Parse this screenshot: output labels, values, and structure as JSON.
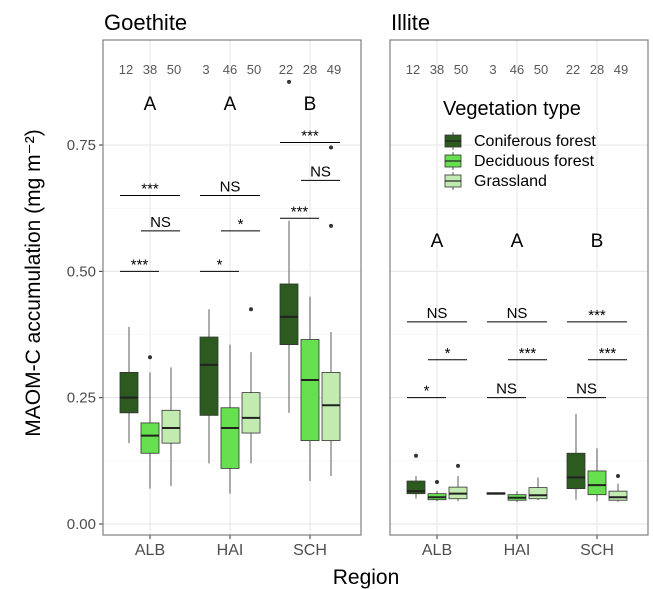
{
  "chart_data": {
    "type": "box",
    "ylabel": "MAOM-C accumulation (mg m⁻²)",
    "xlabel": "Region",
    "ylim": [
      0,
      0.8
    ],
    "yticks": [
      0.0,
      0.25,
      0.5,
      0.75
    ],
    "ytick_labels": [
      "0.00",
      "0.25",
      "0.50",
      "0.75"
    ],
    "categories": [
      "ALB",
      "HAI",
      "SCH"
    ],
    "grid": true,
    "legend": {
      "title": "Vegetation type",
      "placement": "inside-right-panel-top",
      "entries": [
        {
          "name": "Coniferous forest",
          "color": "#2d5a1e"
        },
        {
          "name": "Deciduous forest",
          "color": "#66e04f"
        },
        {
          "name": "Grassland",
          "color": "#c2ebb2"
        }
      ]
    },
    "panels": [
      {
        "title": "Goethite",
        "groups": [
          {
            "category": "ALB",
            "counts": [
              "12",
              "38",
              "50"
            ],
            "letter": "A",
            "boxes": [
              {
                "series": "Coniferous forest",
                "min": 0.16,
                "q1": 0.22,
                "median": 0.25,
                "q3": 0.3,
                "max": 0.39,
                "outliers": []
              },
              {
                "series": "Deciduous forest",
                "min": 0.07,
                "q1": 0.14,
                "median": 0.175,
                "q3": 0.2,
                "max": 0.3,
                "outliers": [
                  0.33
                ]
              },
              {
                "series": "Grassland",
                "min": 0.075,
                "q1": 0.16,
                "median": 0.19,
                "q3": 0.225,
                "max": 0.31,
                "outliers": []
              }
            ],
            "sig": [
              {
                "pair": [
                  0,
                  1
                ],
                "label": "***",
                "value": 0.5
              },
              {
                "pair": [
                  1,
                  2
                ],
                "label": "NS",
                "value": 0.58
              },
              {
                "pair": [
                  0,
                  2
                ],
                "label": "***",
                "value": 0.65
              }
            ]
          },
          {
            "category": "HAI",
            "counts": [
              "3",
              "46",
              "50"
            ],
            "letter": "A",
            "boxes": [
              {
                "series": "Coniferous forest",
                "min": 0.12,
                "q1": 0.215,
                "median": 0.315,
                "q3": 0.37,
                "max": 0.425,
                "outliers": []
              },
              {
                "series": "Deciduous forest",
                "min": 0.06,
                "q1": 0.11,
                "median": 0.19,
                "q3": 0.23,
                "max": 0.355,
                "outliers": []
              },
              {
                "series": "Grassland",
                "min": 0.12,
                "q1": 0.18,
                "median": 0.21,
                "q3": 0.26,
                "max": 0.34,
                "outliers": [
                  0.425
                ]
              }
            ],
            "sig": [
              {
                "pair": [
                  0,
                  1
                ],
                "label": "*",
                "value": 0.5
              },
              {
                "pair": [
                  1,
                  2
                ],
                "label": "*",
                "value": 0.58
              },
              {
                "pair": [
                  0,
                  2
                ],
                "label": "NS",
                "value": 0.65
              }
            ]
          },
          {
            "category": "SCH",
            "counts": [
              "22",
              "28",
              "49"
            ],
            "letter": "B",
            "boxes": [
              {
                "series": "Coniferous forest",
                "min": 0.22,
                "q1": 0.355,
                "median": 0.41,
                "q3": 0.475,
                "max": 0.6,
                "outliers": [
                  0.875
                ]
              },
              {
                "series": "Deciduous forest",
                "min": 0.085,
                "q1": 0.165,
                "median": 0.285,
                "q3": 0.365,
                "max": 0.45,
                "outliers": []
              },
              {
                "series": "Grassland",
                "min": 0.095,
                "q1": 0.165,
                "median": 0.235,
                "q3": 0.3,
                "max": 0.38,
                "outliers": [
                  0.59,
                  0.745
                ]
              }
            ],
            "sig": [
              {
                "pair": [
                  0,
                  1
                ],
                "label": "***",
                "value": 0.605
              },
              {
                "pair": [
                  1,
                  2
                ],
                "label": "NS",
                "value": 0.68
              },
              {
                "pair": [
                  0,
                  2
                ],
                "label": "***",
                "value": 0.755
              }
            ]
          }
        ]
      },
      {
        "title": "Illite",
        "groups": [
          {
            "category": "ALB",
            "counts": [
              "12",
              "38",
              "50"
            ],
            "letter": "A",
            "boxes": [
              {
                "series": "Coniferous forest",
                "min": 0.05,
                "q1": 0.06,
                "median": 0.065,
                "q3": 0.085,
                "max": 0.095,
                "outliers": [
                  0.135
                ]
              },
              {
                "series": "Deciduous forest",
                "min": 0.045,
                "q1": 0.048,
                "median": 0.053,
                "q3": 0.06,
                "max": 0.065,
                "outliers": [
                  0.083
                ]
              },
              {
                "series": "Grassland",
                "min": 0.045,
                "q1": 0.05,
                "median": 0.06,
                "q3": 0.073,
                "max": 0.095,
                "outliers": [
                  0.115
                ]
              }
            ],
            "sig": [
              {
                "pair": [
                  0,
                  1
                ],
                "label": "*",
                "value": 0.25
              },
              {
                "pair": [
                  1,
                  2
                ],
                "label": "*",
                "value": 0.325
              },
              {
                "pair": [
                  0,
                  2
                ],
                "label": "NS",
                "value": 0.4
              }
            ]
          },
          {
            "category": "HAI",
            "counts": [
              "3",
              "46",
              "50"
            ],
            "letter": "A",
            "boxes": [
              {
                "series": "Coniferous forest",
                "min": 0.058,
                "q1": 0.059,
                "median": 0.06,
                "q3": 0.062,
                "max": 0.063,
                "outliers": []
              },
              {
                "series": "Deciduous forest",
                "min": 0.043,
                "q1": 0.047,
                "median": 0.052,
                "q3": 0.058,
                "max": 0.065,
                "outliers": []
              },
              {
                "series": "Grassland",
                "min": 0.047,
                "q1": 0.05,
                "median": 0.057,
                "q3": 0.072,
                "max": 0.092,
                "outliers": []
              }
            ],
            "sig": [
              {
                "pair": [
                  0,
                  1
                ],
                "label": "NS",
                "value": 0.25
              },
              {
                "pair": [
                  1,
                  2
                ],
                "label": "***",
                "value": 0.325
              },
              {
                "pair": [
                  0,
                  2
                ],
                "label": "NS",
                "value": 0.4
              }
            ]
          },
          {
            "category": "SCH",
            "counts": [
              "22",
              "28",
              "49"
            ],
            "letter": "B",
            "boxes": [
              {
                "series": "Coniferous forest",
                "min": 0.048,
                "q1": 0.07,
                "median": 0.092,
                "q3": 0.14,
                "max": 0.218,
                "outliers": []
              },
              {
                "series": "Deciduous forest",
                "min": 0.045,
                "q1": 0.058,
                "median": 0.077,
                "q3": 0.105,
                "max": 0.15,
                "outliers": []
              },
              {
                "series": "Grassland",
                "min": 0.044,
                "q1": 0.047,
                "median": 0.053,
                "q3": 0.065,
                "max": 0.08,
                "outliers": [
                  0.095
                ]
              }
            ],
            "sig": [
              {
                "pair": [
                  0,
                  1
                ],
                "label": "NS",
                "value": 0.25
              },
              {
                "pair": [
                  1,
                  2
                ],
                "label": "***",
                "value": 0.325
              },
              {
                "pair": [
                  0,
                  2
                ],
                "label": "***",
                "value": 0.4
              }
            ]
          }
        ]
      }
    ]
  }
}
